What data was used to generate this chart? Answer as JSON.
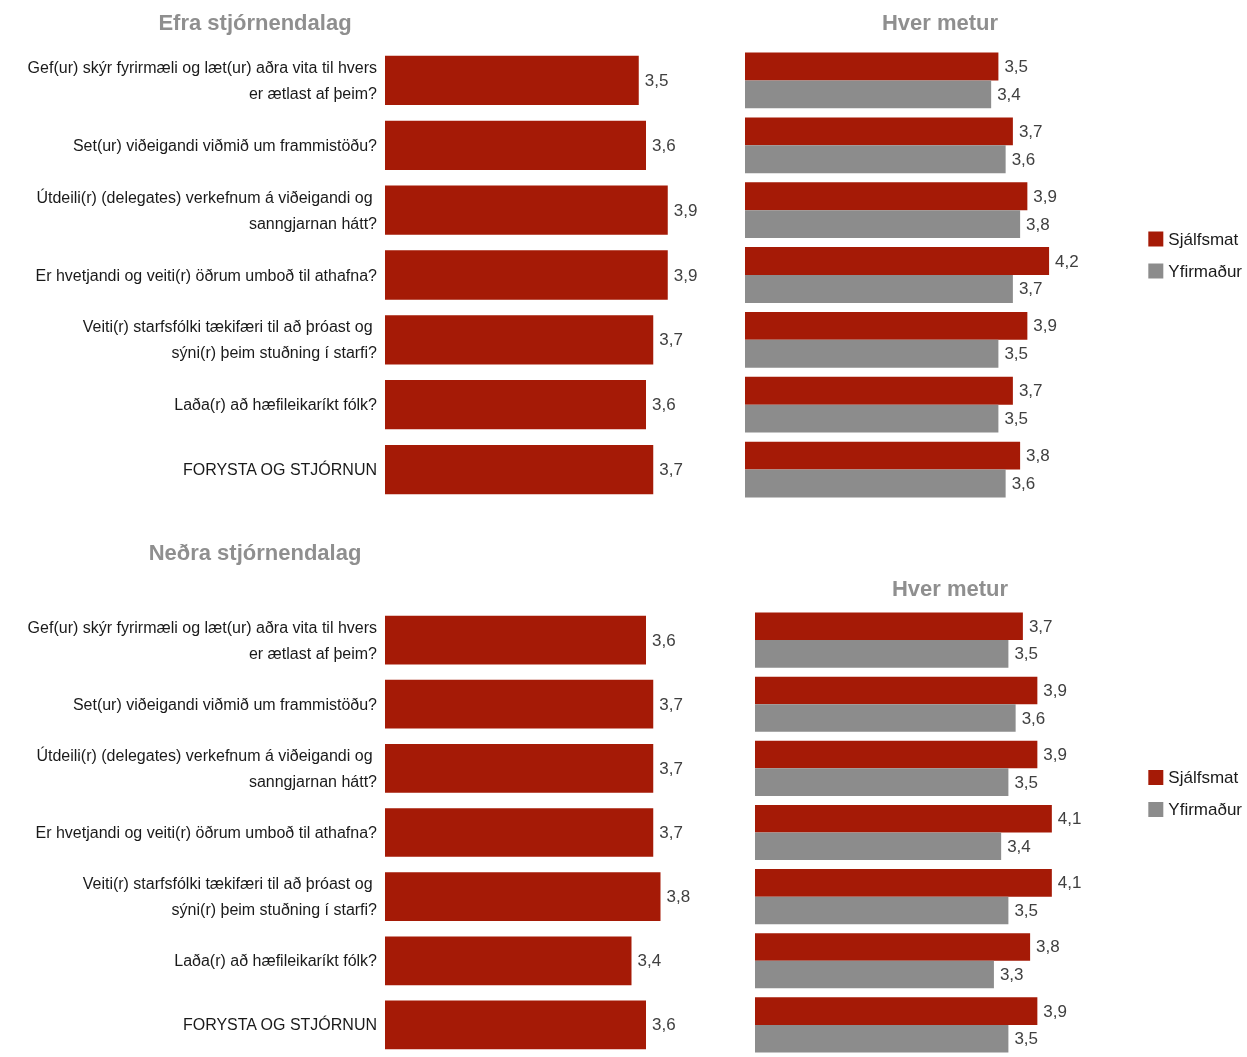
{
  "chart_data": [
    {
      "type": "bar",
      "orientation": "horizontal",
      "title": "Efra stjórnendalag",
      "categories": [
        "Gef(ur) skýr fyrirmæli og læt(ur) aðra vita til hvers er ætlast af þeim?",
        "Set(ur) viðeigandi viðmið um frammistöðu?",
        "Útdeili(r) (delegates) verkefnum á viðeigandi og sanngjarnan hátt?",
        "Er hvetjandi og veiti(r) öðrum umboð til athafna?",
        "Veiti(r) starfsfólki tækifæri til að þróast og sýni(r) þeim stuðning í starfi?",
        "Laða(r) að hæfileikaríkt fólk?",
        "FORYSTA OG STJÓRNUN"
      ],
      "values": [
        3.5,
        3.6,
        3.9,
        3.9,
        3.7,
        3.6,
        3.7
      ],
      "color": "#a51a06",
      "value_labels": [
        "3,5",
        "3,6",
        "3,9",
        "3,9",
        "3,7",
        "3,6",
        "3,7"
      ],
      "tick_labels": "y",
      "grid": false,
      "legend": false
    },
    {
      "type": "bar",
      "orientation": "horizontal",
      "title": "Hver metur",
      "categories": [
        null,
        null,
        null,
        null,
        null,
        null,
        null
      ],
      "series": [
        {
          "name": "Sjálfsmat",
          "color": "#a51a06",
          "values": [
            3.5,
            3.7,
            3.9,
            4.2,
            3.9,
            3.7,
            3.8
          ],
          "value_labels": [
            "3,5",
            "3,7",
            "3,9",
            "4,2",
            "3,9",
            "3,7",
            "3,8"
          ]
        },
        {
          "name": "Yfirmaður",
          "color": "#8c8c8c",
          "values": [
            3.4,
            3.6,
            3.8,
            3.7,
            3.5,
            3.5,
            3.6
          ],
          "value_labels": [
            "3,4",
            "3,6",
            "3,8",
            "3,7",
            "3,5",
            "3,5",
            "3,6"
          ]
        }
      ],
      "tick_labels": false,
      "grid": false,
      "legend": "right"
    },
    {
      "type": "bar",
      "orientation": "horizontal",
      "title": "Neðra stjórnendalag",
      "categories": [
        "Gef(ur) skýr fyrirmæli og læt(ur) aðra vita til hvers er ætlast af þeim?",
        "Set(ur) viðeigandi viðmið um frammistöðu?",
        "Útdeili(r) (delegates) verkefnum á viðeigandi og sanngjarnan hátt?",
        "Er hvetjandi og veiti(r) öðrum umboð til athafna?",
        "Veiti(r) starfsfólki tækifæri til að þróast og sýni(r) þeim stuðning í starfi?",
        "Laða(r) að hæfileikaríkt fólk?",
        "FORYSTA OG STJÓRNUN"
      ],
      "values": [
        3.6,
        3.7,
        3.7,
        3.7,
        3.8,
        3.4,
        3.6
      ],
      "color": "#a51a06",
      "value_labels": [
        "3,6",
        "3,7",
        "3,7",
        "3,7",
        "3,8",
        "3,4",
        "3,6"
      ],
      "tick_labels": "y",
      "grid": false,
      "legend": false
    },
    {
      "type": "bar",
      "orientation": "horizontal",
      "title": "Hver metur",
      "categories": [
        null,
        null,
        null,
        null,
        null,
        null,
        null
      ],
      "series": [
        {
          "name": "Sjálfsmat",
          "color": "#a51a06",
          "values": [
            3.7,
            3.9,
            3.9,
            4.1,
            4.1,
            3.8,
            3.9
          ],
          "value_labels": [
            "3,7",
            "3,9",
            "3,9",
            "4,1",
            "4,1",
            "3,8",
            "3,9"
          ]
        },
        {
          "name": "Yfirmaður",
          "color": "#8c8c8c",
          "values": [
            3.5,
            3.6,
            3.5,
            3.4,
            3.5,
            3.3,
            3.5
          ],
          "value_labels": [
            "3,5",
            "3,6",
            "3,5",
            "3,4",
            "3,5",
            "3,3",
            "3,5"
          ]
        }
      ],
      "tick_labels": false,
      "grid": false,
      "legend": "right"
    }
  ]
}
